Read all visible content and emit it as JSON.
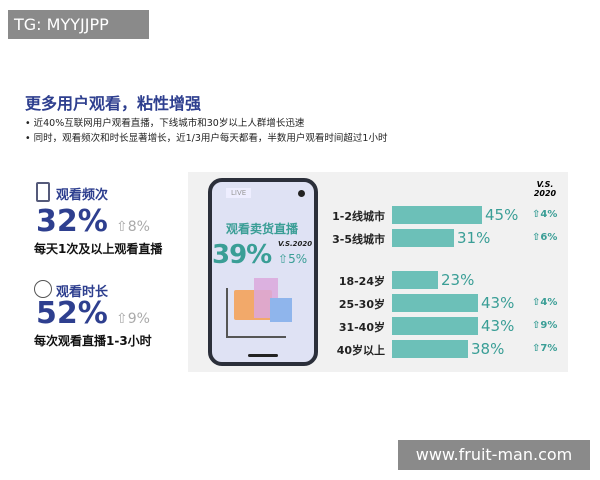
{
  "watermarks": {
    "top": "TG: MYYJJPP",
    "bottom": "www.fruit-man.com"
  },
  "title": "更多用户观看，粘性增强",
  "bullets": [
    "近40%互联网用户观看直播，下线城市和30岁以上人群增长迅速",
    "同时，观看频次和时长显著增长，近1/3用户每天都看，半数用户观看时间超过1小时"
  ],
  "stats": [
    {
      "heading": "观看频次",
      "icon": "phone-icon",
      "value": "32%",
      "change": "8%",
      "desc": "每天1次及以上观看直播"
    },
    {
      "heading": "观看时长",
      "icon": "clock-icon",
      "value": "52%",
      "change": "9%",
      "desc": "每次观看直播1-3小时"
    }
  ],
  "phone": {
    "live": "LIVE",
    "headline": "观看卖货直播",
    "value": "39%",
    "vs": "V.S.2020",
    "change": "5%"
  },
  "colors": {
    "accent": "#2e3f8f",
    "teal": "#6cc0b8",
    "teal_text": "#3a9e96"
  },
  "chart_data": {
    "type": "bar",
    "orientation": "horizontal",
    "header": "V.S. 2020",
    "categories": [
      "1-2线城市",
      "3-5线城市",
      "18-24岁",
      "25-30岁",
      "31-40岁",
      "40岁以上"
    ],
    "values": [
      45,
      31,
      23,
      43,
      43,
      38
    ],
    "value_labels": [
      "45%",
      "31%",
      "23%",
      "43%",
      "43%",
      "38%"
    ],
    "changes": [
      "4%",
      "6%",
      "",
      "4%",
      "9%",
      "7%"
    ]
  }
}
